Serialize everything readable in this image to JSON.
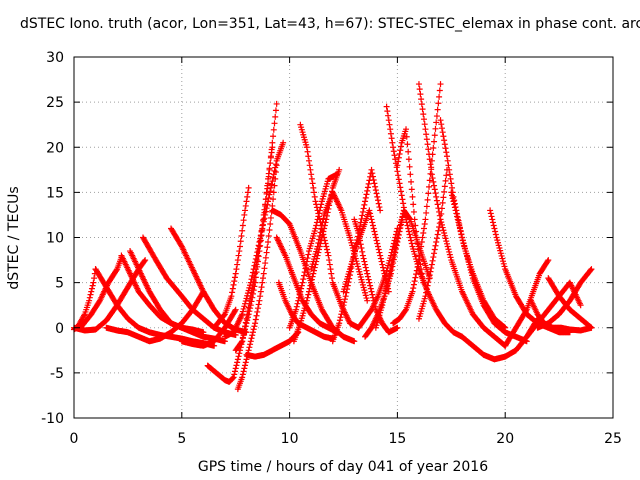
{
  "chart_data": {
    "type": "scatter",
    "title": "dSTEC Iono. truth (acor, Lon=351, Lat=43, h=67): STEC-STEC_elemax in phase cont. arc",
    "xlabel": "GPS time / hours of day 041 of year 2016",
    "ylabel": "dSTEC  / TECUs",
    "xlim": [
      0,
      25
    ],
    "ylim": [
      -10,
      30
    ],
    "x_ticks": [
      0,
      5,
      10,
      15,
      20,
      25
    ],
    "y_ticks": [
      -10,
      -5,
      0,
      5,
      10,
      15,
      20,
      25,
      30
    ],
    "x_tick_labels": [
      "0",
      "5",
      "10",
      "15",
      "20",
      "25"
    ],
    "y_tick_labels": [
      "-10",
      "-5",
      "0",
      "5",
      "10",
      "15",
      "20",
      "25",
      "30"
    ],
    "grid": true,
    "marker": "+",
    "color": "#ff0000",
    "series": [
      {
        "x": [
          0.0,
          0.5,
          1.0,
          1.5,
          2.0,
          2.5,
          3.0,
          3.3
        ],
        "y": [
          0.0,
          -0.3,
          -0.2,
          0.8,
          2.5,
          4.5,
          6.5,
          7.5
        ]
      },
      {
        "x": [
          0.0,
          0.2,
          0.5,
          0.7,
          0.9,
          1.0
        ],
        "y": [
          -0.2,
          0.2,
          1.5,
          3.0,
          5.0,
          6.5
        ]
      },
      {
        "x": [
          1.0,
          1.5,
          2.0,
          2.5,
          3.0,
          3.5,
          4.0,
          4.5,
          5.0,
          5.5,
          6.0,
          6.5
        ],
        "y": [
          6.5,
          4.5,
          2.5,
          1.0,
          0.0,
          -0.5,
          -0.8,
          -1.0,
          -1.2,
          -1.5,
          -1.7,
          -2.0
        ]
      },
      {
        "x": [
          2.2,
          2.6,
          3.0,
          3.5,
          4.0,
          4.5,
          5.0,
          5.5,
          6.0,
          6.5,
          7.0
        ],
        "y": [
          8.0,
          6.0,
          4.0,
          2.5,
          1.2,
          0.5,
          0.0,
          -0.5,
          -1.0,
          -1.2,
          -1.5
        ]
      },
      {
        "x": [
          0.3,
          0.8,
          1.2,
          1.6,
          2.0,
          2.2
        ],
        "y": [
          0.0,
          1.5,
          3.0,
          5.0,
          6.5,
          7.8
        ]
      },
      {
        "x": [
          2.6,
          3.0,
          3.5,
          4.0,
          4.5,
          5.0,
          5.5,
          6.0
        ],
        "y": [
          8.5,
          6.5,
          4.0,
          2.0,
          0.5,
          0.0,
          -0.2,
          -0.5
        ]
      },
      {
        "x": [
          3.2,
          3.8,
          4.3,
          5.0,
          5.5,
          6.0,
          6.5,
          7.0,
          7.5
        ],
        "y": [
          10.0,
          7.5,
          5.5,
          3.5,
          2.0,
          1.0,
          0.0,
          -0.5,
          -0.8
        ]
      },
      {
        "x": [
          1.5,
          2.0,
          2.5,
          3.0,
          3.5,
          4.0,
          4.5,
          5.0,
          5.5,
          6.0
        ],
        "y": [
          0.0,
          -0.3,
          -0.5,
          -1.0,
          -1.5,
          -1.2,
          -0.5,
          0.5,
          2.0,
          4.0
        ]
      },
      {
        "x": [
          4.5,
          5.0,
          5.5,
          6.0,
          6.5,
          7.0,
          7.5,
          8.0
        ],
        "y": [
          11.0,
          9.0,
          6.5,
          4.0,
          2.0,
          0.5,
          -0.2,
          -0.5
        ]
      },
      {
        "x": [
          5.0,
          5.5,
          6.0,
          6.5,
          7.0,
          7.5
        ],
        "y": [
          -1.5,
          -1.8,
          -2.0,
          -1.5,
          0.0,
          2.0
        ]
      },
      {
        "x": [
          6.2,
          6.6,
          7.0,
          7.2,
          7.4,
          7.6,
          7.8,
          8.0,
          8.2,
          8.4,
          8.6,
          8.8,
          9.0,
          9.2,
          9.4
        ],
        "y": [
          -4.2,
          -5.0,
          -5.8,
          -6.0,
          -5.5,
          -3.5,
          -1.5,
          1.0,
          3.5,
          6.0,
          9.0,
          12.5,
          16.0,
          20.5,
          24.8
        ]
      },
      {
        "x": [
          7.5,
          7.8,
          8.0,
          8.2,
          8.4,
          8.6,
          8.8,
          9.0,
          9.2
        ],
        "y": [
          -2.5,
          -1.5,
          0.5,
          2.5,
          5.0,
          8.5,
          12.0,
          16.5,
          20.0
        ]
      },
      {
        "x": [
          7.6,
          7.8,
          8.0,
          8.2,
          8.4,
          8.6,
          8.8,
          9.0,
          9.2,
          9.4
        ],
        "y": [
          -6.8,
          -5.5,
          -3.5,
          -1.5,
          0.5,
          3.0,
          6.0,
          9.5,
          13.5,
          18.0
        ]
      },
      {
        "x": [
          6.5,
          7.0,
          7.3,
          7.5,
          7.7,
          7.9,
          8.1
        ],
        "y": [
          0.0,
          1.5,
          3.5,
          6.0,
          9.0,
          12.5,
          15.5
        ]
      },
      {
        "x": [
          7.0,
          7.4,
          7.8,
          8.2,
          8.6,
          9.0,
          9.4,
          9.7
        ],
        "y": [
          -1.0,
          -0.5,
          1.5,
          5.0,
          9.5,
          14.0,
          18.5,
          20.5
        ]
      },
      {
        "x": [
          8.0,
          8.4,
          8.8,
          9.2,
          9.6,
          10.0,
          10.4
        ],
        "y": [
          -3.0,
          -3.2,
          -3.0,
          -2.5,
          -2.0,
          -1.5,
          -0.5
        ]
      },
      {
        "x": [
          9.2,
          9.6,
          10.0,
          10.5,
          11.0,
          11.5,
          12.0,
          12.5,
          13.0
        ],
        "y": [
          13.0,
          12.5,
          11.5,
          8.5,
          5.0,
          2.0,
          0.0,
          -1.0,
          -1.5
        ]
      },
      {
        "x": [
          9.4,
          9.8,
          10.2,
          10.6,
          11.0,
          11.4,
          11.8,
          12.2
        ],
        "y": [
          10.0,
          8.0,
          5.5,
          3.0,
          1.5,
          0.5,
          0.0,
          -0.5
        ]
      },
      {
        "x": [
          9.5,
          9.8,
          10.1,
          10.4,
          10.8,
          11.2,
          11.6,
          12.0
        ],
        "y": [
          5.0,
          3.0,
          1.5,
          0.5,
          0.0,
          -0.5,
          -1.0,
          -1.2
        ]
      },
      {
        "x": [
          10.0,
          10.3,
          10.6,
          10.9,
          11.2,
          11.5,
          11.8,
          12.2
        ],
        "y": [
          0.0,
          2.0,
          5.0,
          8.5,
          11.0,
          14.0,
          16.5,
          17.0
        ]
      },
      {
        "x": [
          10.5,
          10.8,
          11.0,
          11.2,
          11.5,
          11.8,
          12.0,
          12.4,
          12.8,
          13.2
        ],
        "y": [
          22.5,
          20.0,
          17.0,
          14.0,
          11.0,
          8.0,
          5.0,
          2.5,
          0.5,
          0.0
        ]
      },
      {
        "x": [
          10.2,
          10.5,
          10.8,
          11.1,
          11.4,
          11.7,
          12.0,
          12.3
        ],
        "y": [
          -1.5,
          0.5,
          3.0,
          6.0,
          9.0,
          12.0,
          15.5,
          17.5
        ]
      },
      {
        "x": [
          11.0,
          11.3,
          11.6,
          12.0,
          12.4,
          12.8,
          13.2,
          13.6
        ],
        "y": [
          6.5,
          9.0,
          12.5,
          15.0,
          13.0,
          10.0,
          6.5,
          3.0
        ]
      },
      {
        "x": [
          12.0,
          12.3,
          12.6,
          12.9,
          13.2,
          13.5,
          13.8,
          14.2
        ],
        "y": [
          -1.5,
          0.5,
          3.5,
          7.0,
          10.5,
          14.0,
          17.5,
          13.0
        ]
      },
      {
        "x": [
          12.5,
          12.8,
          13.1,
          13.4,
          13.7,
          14.0,
          14.3,
          14.6
        ],
        "y": [
          4.0,
          6.5,
          9.0,
          11.0,
          13.0,
          10.0,
          7.0,
          4.0
        ]
      },
      {
        "x": [
          13.0,
          13.2,
          13.4,
          13.6,
          13.8,
          14.0,
          14.3,
          14.6,
          15.0
        ],
        "y": [
          12.0,
          10.5,
          8.0,
          6.0,
          4.0,
          2.0,
          0.5,
          -0.5,
          0.0
        ]
      },
      {
        "x": [
          13.2,
          13.5,
          13.8,
          14.1,
          14.4,
          14.7,
          15.0
        ],
        "y": [
          0.0,
          1.0,
          2.0,
          3.5,
          5.5,
          8.0,
          11.0
        ]
      },
      {
        "x": [
          13.5,
          13.8,
          14.1,
          14.4,
          14.7,
          15.0,
          15.3
        ],
        "y": [
          -1.0,
          0.0,
          1.5,
          3.5,
          6.0,
          9.5,
          13.0
        ]
      },
      {
        "x": [
          14.0,
          14.3,
          14.6,
          15.0,
          15.3,
          15.6,
          16.0,
          16.5
        ],
        "y": [
          0.0,
          2.5,
          5.5,
          10.0,
          13.0,
          12.0,
          9.0,
          5.5
        ]
      },
      {
        "x": [
          14.5,
          14.8,
          15.1,
          15.4,
          15.7,
          16.0,
          16.4,
          16.8,
          17.2,
          17.6,
          18.0
        ],
        "y": [
          24.5,
          20.0,
          16.0,
          12.0,
          9.0,
          6.5,
          4.0,
          2.0,
          0.5,
          -0.5,
          -1.0
        ]
      },
      {
        "x": [
          15.0,
          15.2,
          15.4,
          15.6,
          15.8,
          16.0,
          16.2
        ],
        "y": [
          18.0,
          20.5,
          22.0,
          17.0,
          12.0,
          8.0,
          5.0
        ]
      },
      {
        "x": [
          14.8,
          15.1,
          15.4,
          15.7,
          16.0,
          16.3,
          16.6,
          17.0
        ],
        "y": [
          0.5,
          1.0,
          2.0,
          4.0,
          7.5,
          12.0,
          18.5,
          27.0
        ]
      },
      {
        "x": [
          16.0,
          16.3,
          16.6,
          17.0,
          17.5,
          18.0,
          18.5,
          19.0,
          19.5,
          20.0
        ],
        "y": [
          27.0,
          22.0,
          17.0,
          12.0,
          7.5,
          4.0,
          1.5,
          0.0,
          -1.0,
          -2.0
        ]
      },
      {
        "x": [
          16.0,
          16.3,
          16.6,
          17.0,
          17.3
        ],
        "y": [
          1.0,
          3.5,
          7.0,
          12.0,
          17.5
        ]
      },
      {
        "x": [
          17.0,
          17.3,
          17.6,
          18.0,
          18.5,
          19.0,
          19.5,
          20.0,
          20.5,
          21.0
        ],
        "y": [
          23.0,
          19.0,
          14.5,
          10.0,
          5.5,
          2.5,
          0.5,
          -0.5,
          -1.0,
          -1.5
        ]
      },
      {
        "x": [
          17.5,
          17.8,
          18.1,
          18.5,
          19.0,
          19.5,
          20.0
        ],
        "y": [
          15.0,
          12.0,
          9.0,
          6.0,
          3.0,
          1.0,
          0.0
        ]
      },
      {
        "x": [
          18.0,
          18.5,
          19.0,
          19.5,
          20.0,
          20.5,
          21.0,
          21.5
        ],
        "y": [
          -1.0,
          -2.0,
          -3.0,
          -3.5,
          -3.2,
          -2.5,
          -1.0,
          1.0
        ]
      },
      {
        "x": [
          19.3,
          19.6,
          20.0,
          20.5,
          21.0,
          21.5,
          22.0,
          22.5,
          23.0
        ],
        "y": [
          13.0,
          10.0,
          6.5,
          3.5,
          1.5,
          0.5,
          0.0,
          -0.5,
          -0.5
        ]
      },
      {
        "x": [
          20.0,
          20.5,
          21.0,
          21.3,
          21.6,
          22.0
        ],
        "y": [
          -2.0,
          0.0,
          2.0,
          4.0,
          6.0,
          7.5
        ]
      },
      {
        "x": [
          21.2,
          21.5,
          21.8,
          22.2,
          22.6,
          23.0,
          23.5,
          24.0
        ],
        "y": [
          3.0,
          1.5,
          0.5,
          0.0,
          0.0,
          -0.2,
          -0.3,
          0.0
        ]
      },
      {
        "x": [
          21.5,
          22.0,
          22.5,
          23.0,
          23.5,
          24.0
        ],
        "y": [
          0.0,
          0.5,
          1.5,
          3.0,
          5.0,
          6.5
        ]
      },
      {
        "x": [
          22.0,
          22.5,
          23.0,
          23.5,
          24.0
        ],
        "y": [
          5.5,
          3.5,
          2.0,
          1.0,
          0.0
        ]
      },
      {
        "x": [
          21.0,
          21.5,
          22.0,
          22.5,
          23.0,
          23.5
        ],
        "y": [
          -1.0,
          0.5,
          2.0,
          3.5,
          5.0,
          2.5
        ]
      }
    ]
  }
}
